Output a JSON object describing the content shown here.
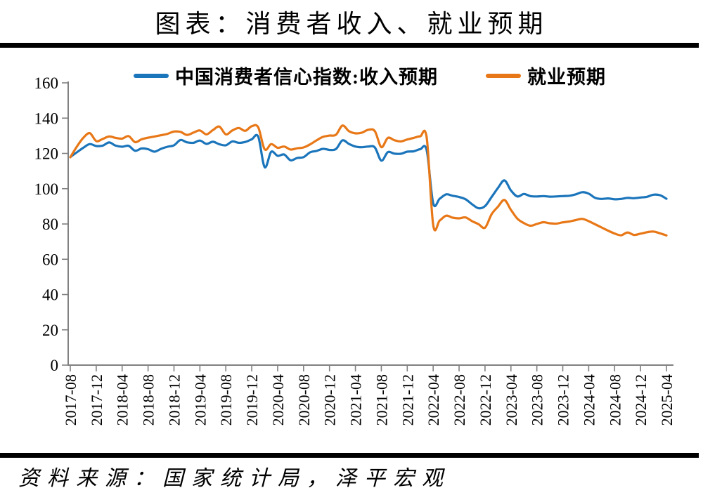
{
  "page": {
    "title": "图表：消费者收入、就业预期",
    "source": "资料来源：国家统计局，泽平宏观"
  },
  "chart_data": {
    "type": "line",
    "title": "图表：消费者收入、就业预期",
    "xlabel": "",
    "ylabel": "",
    "ylim": [
      0,
      160
    ],
    "y_ticks": [
      0,
      20,
      40,
      60,
      80,
      100,
      120,
      140,
      160
    ],
    "grid": false,
    "legend_position": "top",
    "axis_color": "#808080",
    "x_frequency": "monthly",
    "x_range": [
      "2017-08",
      "2025-04"
    ],
    "x_tick_labels": [
      "2017-08",
      "2017-12",
      "2018-04",
      "2018-08",
      "2018-12",
      "2019-04",
      "2019-08",
      "2019-12",
      "2020-04",
      "2020-08",
      "2020-12",
      "2021-04",
      "2021-08",
      "2021-12",
      "2022-04",
      "2022-08",
      "2022-12",
      "2023-04",
      "2023-08",
      "2023-12",
      "2024-04",
      "2024-08",
      "2024-12",
      "2025-04"
    ],
    "series": [
      {
        "name": "中国消费者信心指数:收入预期",
        "color": "#1b75bb",
        "values": [
          117.9,
          120.6,
          123.2,
          125.3,
          124.2,
          124.4,
          126.2,
          124.4,
          123.8,
          124.3,
          121.5,
          122.8,
          122.4,
          121.0,
          122.6,
          123.8,
          124.6,
          127.6,
          126.3,
          126.0,
          127.3,
          125.4,
          126.6,
          125.2,
          124.6,
          126.8,
          126.0,
          126.5,
          128.0,
          129.5,
          112.2,
          120.9,
          118.6,
          119.4,
          116.1,
          117.4,
          117.9,
          120.6,
          121.4,
          122.6,
          122.0,
          122.5,
          127.4,
          125.4,
          123.9,
          123.5,
          123.9,
          123.4,
          115.9,
          120.7,
          119.9,
          119.8,
          121.0,
          121.2,
          122.4,
          121.8,
          91.8,
          94.3,
          96.8,
          96.0,
          95.3,
          94.0,
          91.2,
          88.9,
          90.1,
          95.2,
          100.4,
          104.7,
          99.0,
          95.6,
          97.0,
          95.8,
          95.6,
          95.8,
          95.5,
          95.6,
          95.8,
          96.0,
          96.8,
          98.0,
          97.2,
          94.8,
          94.2,
          94.5,
          94.0,
          94.2,
          94.8,
          94.6,
          95.0,
          95.4,
          96.6,
          96.3,
          94.3
        ]
      },
      {
        "name": "就业预期",
        "color": "#e87817",
        "values": [
          117.8,
          123.8,
          128.8,
          131.5,
          127.0,
          128.2,
          129.6,
          128.8,
          128.4,
          129.8,
          126.4,
          128.0,
          128.9,
          129.6,
          130.3,
          131.1,
          132.4,
          132.2,
          130.5,
          131.8,
          133.0,
          130.8,
          133.2,
          135.2,
          130.8,
          133.0,
          134.4,
          132.8,
          135.4,
          134.8,
          122.3,
          125.3,
          123.2,
          123.9,
          122.2,
          122.9,
          123.4,
          125.1,
          127.4,
          129.4,
          130.1,
          130.6,
          135.8,
          132.6,
          131.4,
          131.8,
          133.4,
          132.6,
          123.6,
          128.8,
          127.5,
          126.8,
          127.9,
          128.8,
          129.7,
          128.9,
          79.5,
          81.9,
          84.7,
          83.6,
          83.2,
          83.7,
          81.6,
          79.9,
          77.9,
          85.4,
          89.8,
          93.6,
          88.0,
          83.0,
          80.5,
          79.0,
          80.0,
          81.0,
          80.4,
          80.2,
          80.9,
          81.4,
          82.2,
          82.9,
          81.6,
          79.8,
          78.0,
          76.2,
          74.6,
          73.6,
          75.2,
          73.8,
          74.5,
          75.3,
          75.7,
          74.7,
          73.5
        ]
      }
    ]
  }
}
